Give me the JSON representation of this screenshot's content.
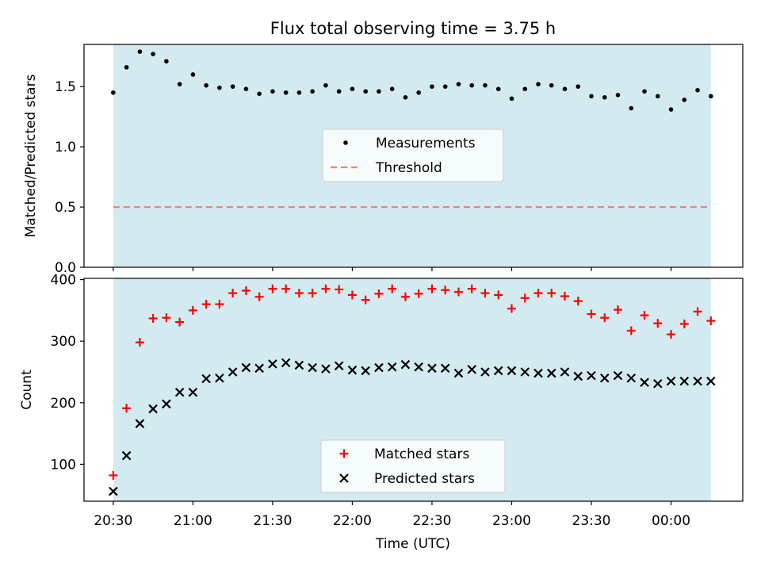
{
  "title": "Flux total observing time = 3.75 h",
  "x_axis": {
    "label": "Time (UTC)",
    "tick_labels": [
      "20:30",
      "21:00",
      "21:30",
      "22:00",
      "22:30",
      "23:00",
      "23:30",
      "00:00"
    ],
    "tick_minutes": [
      0,
      30,
      60,
      90,
      120,
      150,
      180,
      210
    ],
    "range_minutes": [
      -11,
      237
    ]
  },
  "observing_window_minutes": [
    0,
    225
  ],
  "colors": {
    "window_fill": "#d3eaf0",
    "measurement": "#000000",
    "threshold": "#f07f7f",
    "matched": "#ff0000",
    "predicted": "#000000",
    "axes": "#000000"
  },
  "chart_data": [
    {
      "type": "scatter",
      "ylabel": "Matched/Predicted stars",
      "ylim": [
        0.0,
        1.85
      ],
      "y_ticks": [
        "0.0",
        "0.5",
        "1.0",
        "1.5"
      ],
      "y_tick_values": [
        0.0,
        0.5,
        1.0,
        1.5
      ],
      "legend_position": "center",
      "series": [
        {
          "name": "Measurements",
          "marker": "dot",
          "x_minutes": [
            0,
            5,
            10,
            15,
            20,
            25,
            30,
            35,
            40,
            45,
            50,
            55,
            60,
            65,
            70,
            75,
            80,
            85,
            90,
            95,
            100,
            105,
            110,
            115,
            120,
            125,
            130,
            135,
            140,
            145,
            150,
            155,
            160,
            165,
            170,
            175,
            180,
            185,
            190,
            195,
            200,
            205,
            210,
            215,
            220,
            225
          ],
          "y": [
            1.45,
            1.66,
            1.79,
            1.77,
            1.71,
            1.52,
            1.6,
            1.51,
            1.49,
            1.5,
            1.48,
            1.44,
            1.46,
            1.45,
            1.45,
            1.46,
            1.51,
            1.46,
            1.48,
            1.46,
            1.46,
            1.48,
            1.41,
            1.45,
            1.5,
            1.5,
            1.52,
            1.51,
            1.51,
            1.48,
            1.4,
            1.48,
            1.52,
            1.51,
            1.48,
            1.5,
            1.42,
            1.41,
            1.43,
            1.32,
            1.46,
            1.42,
            1.31,
            1.39,
            1.47,
            1.42
          ]
        },
        {
          "name": "Threshold",
          "marker": "dashed-line",
          "x_minutes": [
            0,
            225
          ],
          "y": [
            0.5,
            0.5
          ]
        }
      ]
    },
    {
      "type": "scatter",
      "ylabel": "Count",
      "ylim": [
        40,
        402
      ],
      "y_ticks": [
        "100",
        "200",
        "300",
        "400"
      ],
      "y_tick_values": [
        100,
        200,
        300,
        400
      ],
      "legend_position": "lower center",
      "series": [
        {
          "name": "Matched stars",
          "marker": "plus",
          "x_minutes": [
            0,
            5,
            10,
            15,
            20,
            25,
            30,
            35,
            40,
            45,
            50,
            55,
            60,
            65,
            70,
            75,
            80,
            85,
            90,
            95,
            100,
            105,
            110,
            115,
            120,
            125,
            130,
            135,
            140,
            145,
            150,
            155,
            160,
            165,
            170,
            175,
            180,
            185,
            190,
            195,
            200,
            205,
            210,
            215,
            220,
            225
          ],
          "y": [
            82,
            191,
            298,
            337,
            338,
            331,
            350,
            360,
            360,
            378,
            382,
            372,
            385,
            385,
            378,
            378,
            385,
            384,
            375,
            367,
            377,
            385,
            372,
            377,
            385,
            383,
            380,
            385,
            378,
            375,
            353,
            370,
            378,
            378,
            373,
            365,
            344,
            338,
            351,
            317,
            342,
            329,
            311,
            328,
            348,
            333
          ]
        },
        {
          "name": "Predicted stars",
          "marker": "x",
          "x_minutes": [
            0,
            5,
            10,
            15,
            20,
            25,
            30,
            35,
            40,
            45,
            50,
            55,
            60,
            65,
            70,
            75,
            80,
            85,
            90,
            95,
            100,
            105,
            110,
            115,
            120,
            125,
            130,
            135,
            140,
            145,
            150,
            155,
            160,
            165,
            170,
            175,
            180,
            185,
            190,
            195,
            200,
            205,
            210,
            215,
            220,
            225
          ],
          "y": [
            56,
            114,
            166,
            190,
            198,
            217,
            217,
            239,
            240,
            250,
            257,
            256,
            263,
            265,
            261,
            257,
            255,
            260,
            253,
            252,
            257,
            258,
            262,
            258,
            256,
            256,
            248,
            254,
            250,
            252,
            252,
            250,
            248,
            248,
            250,
            243,
            244,
            240,
            244,
            240,
            233,
            231,
            235,
            235,
            235,
            235
          ]
        }
      ]
    }
  ]
}
